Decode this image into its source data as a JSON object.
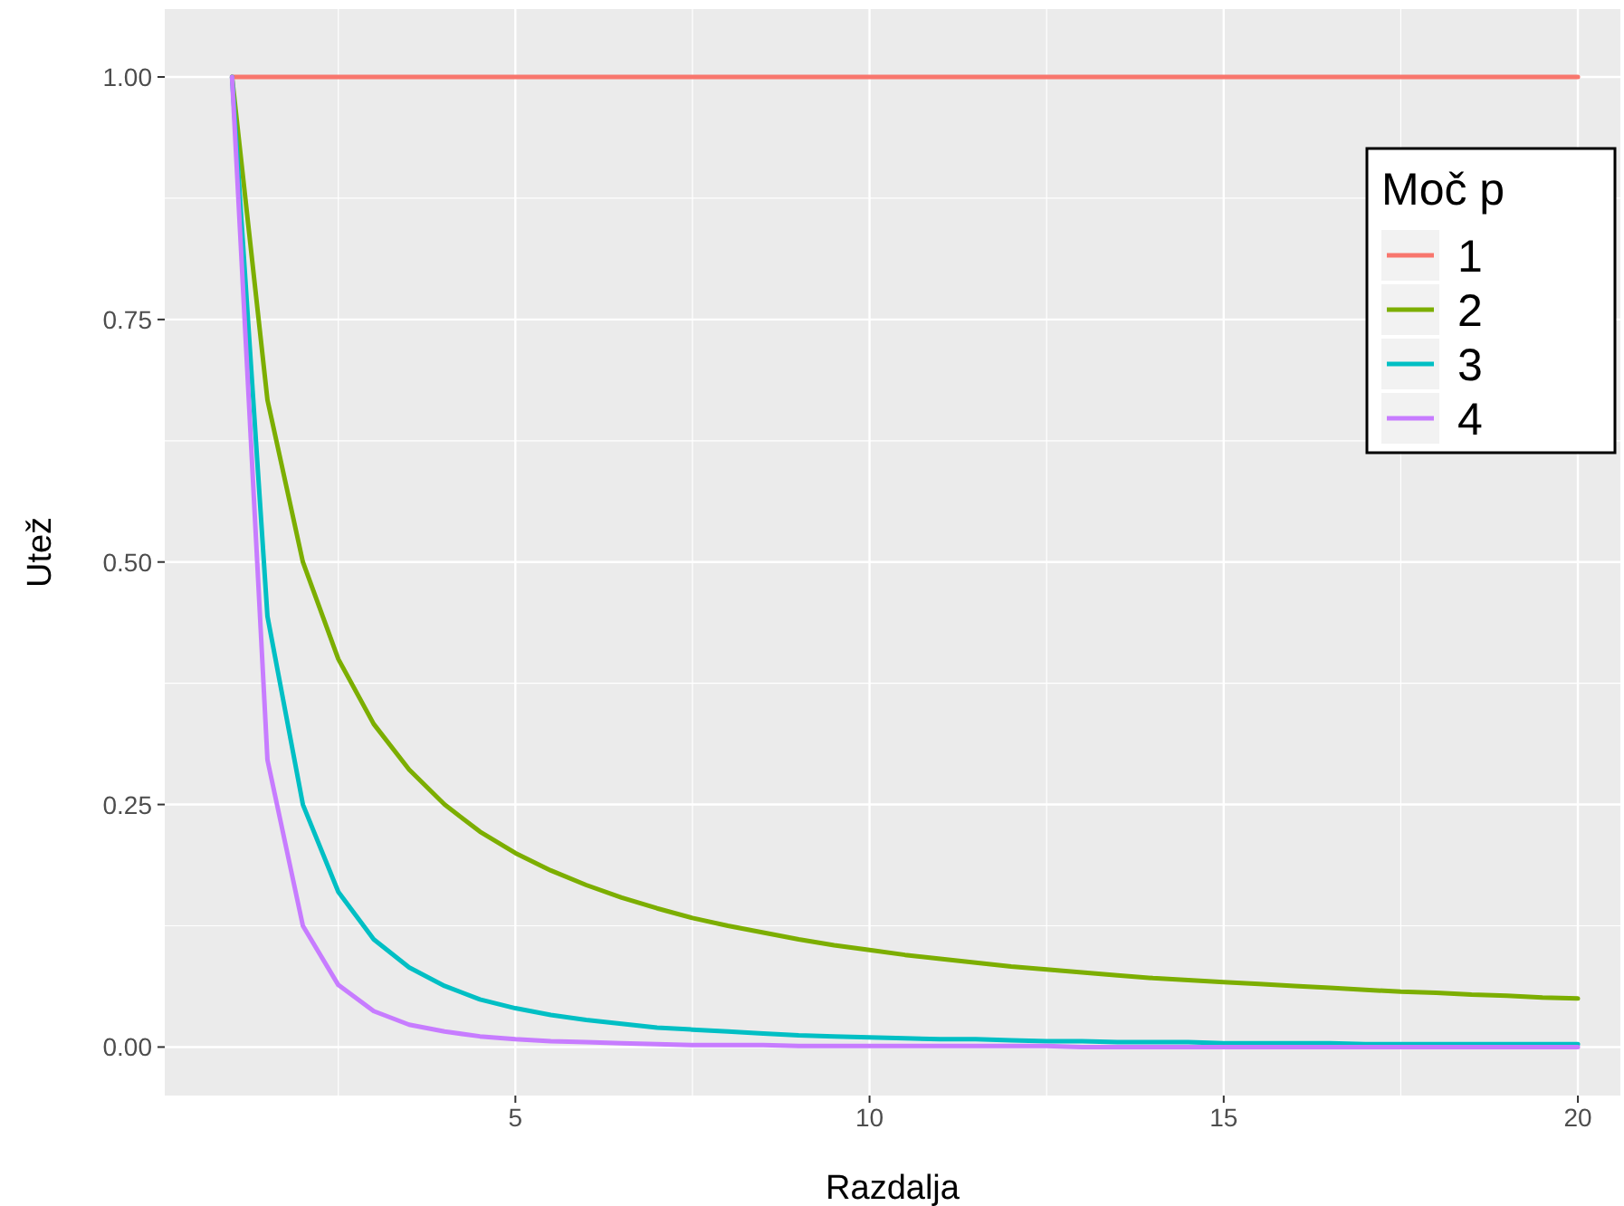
{
  "chart_data": {
    "type": "line",
    "xlabel": "Razdalja",
    "ylabel": "Utež",
    "legend_title": "Moč p",
    "x": [
      1,
      1.5,
      2,
      2.5,
      3,
      3.5,
      4,
      4.5,
      5,
      5.5,
      6,
      6.5,
      7,
      7.5,
      8,
      8.5,
      9,
      9.5,
      10,
      10.5,
      11,
      11.5,
      12,
      12.5,
      13,
      13.5,
      14,
      14.5,
      15,
      15.5,
      16,
      16.5,
      17,
      17.5,
      18,
      18.5,
      19,
      19.5,
      20
    ],
    "series": [
      {
        "name": "1",
        "color": "#f8766d",
        "values": [
          1,
          1,
          1,
          1,
          1,
          1,
          1,
          1,
          1,
          1,
          1,
          1,
          1,
          1,
          1,
          1,
          1,
          1,
          1,
          1,
          1,
          1,
          1,
          1,
          1,
          1,
          1,
          1,
          1,
          1,
          1,
          1,
          1,
          1,
          1,
          1,
          1,
          1,
          1
        ]
      },
      {
        "name": "2",
        "color": "#7cae00",
        "values": [
          1,
          0.667,
          0.5,
          0.4,
          0.333,
          0.286,
          0.25,
          0.222,
          0.2,
          0.182,
          0.167,
          0.154,
          0.143,
          0.133,
          0.125,
          0.118,
          0.111,
          0.105,
          0.1,
          0.095,
          0.091,
          0.087,
          0.083,
          0.08,
          0.077,
          0.074,
          0.071,
          0.069,
          0.067,
          0.065,
          0.063,
          0.061,
          0.059,
          0.057,
          0.056,
          0.054,
          0.053,
          0.051,
          0.05
        ]
      },
      {
        "name": "3",
        "color": "#00bfc4",
        "values": [
          1,
          0.444,
          0.25,
          0.16,
          0.111,
          0.082,
          0.063,
          0.049,
          0.04,
          0.033,
          0.028,
          0.024,
          0.02,
          0.018,
          0.016,
          0.014,
          0.012,
          0.011,
          0.01,
          0.009,
          0.008,
          0.008,
          0.007,
          0.006,
          0.006,
          0.005,
          0.005,
          0.005,
          0.004,
          0.004,
          0.004,
          0.004,
          0.003,
          0.003,
          0.003,
          0.003,
          0.003,
          0.003,
          0.003
        ]
      },
      {
        "name": "4",
        "color": "#c77cff",
        "values": [
          1,
          0.296,
          0.125,
          0.064,
          0.037,
          0.023,
          0.016,
          0.011,
          0.008,
          0.006,
          0.005,
          0.004,
          0.003,
          0.002,
          0.002,
          0.002,
          0.001,
          0.001,
          0.001,
          0.001,
          0.001,
          0.001,
          0.001,
          0.001,
          0,
          0,
          0,
          0,
          0,
          0,
          0,
          0,
          0,
          0,
          0,
          0,
          0,
          0,
          0
        ]
      }
    ],
    "xlim": [
      0.05,
      20.6
    ],
    "ylim": [
      -0.05,
      1.07
    ],
    "xticks": [
      5,
      10,
      15,
      20
    ],
    "yticks": [
      {
        "value": 0,
        "label": "0.00"
      },
      {
        "value": 0.25,
        "label": "0.25"
      },
      {
        "value": 0.5,
        "label": "0.50"
      },
      {
        "value": 0.75,
        "label": "0.75"
      },
      {
        "value": 1,
        "label": "1.00"
      }
    ],
    "grid": true,
    "legend": "top right",
    "line_style": "solid",
    "marker": "none"
  }
}
